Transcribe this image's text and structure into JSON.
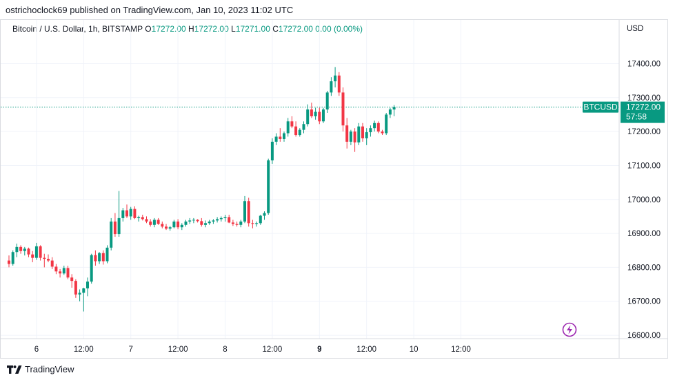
{
  "header": {
    "published_text": "ostrichoclock69 published on TradingView.com, Jan 10, 2023 11:02 UTC"
  },
  "legend": {
    "symbol": "Bitcoin / U.S. Dollar, 1h, BITSTAMP",
    "o_label": "O",
    "o_value": "17272.00",
    "h_label": "H",
    "h_value": "17272.00",
    "l_label": "L",
    "l_value": "17271.00",
    "c_label": "C",
    "c_value": "17272.00",
    "change": "0.00 (0.00%)"
  },
  "footer": {
    "brand": "TradingView",
    "logo_icon": "tradingview-logo-icon"
  },
  "colors": {
    "up": "#089981",
    "down": "#f23645",
    "grid": "#f0f3fa",
    "price_line": "#089981",
    "lightning": "#9c27b0"
  },
  "chart_data": {
    "type": "candlestick",
    "currency_label": "USD",
    "symbol_tag": "BTCUSD",
    "last_price": "17272.00",
    "countdown": "57:58",
    "ylim": [
      16590,
      17480
    ],
    "y_ticks": [
      17400,
      17300,
      17200,
      17100,
      17000,
      16900,
      16800,
      16700,
      16600
    ],
    "y_tick_labels": [
      "17400.00",
      "17300.00",
      "17200.00",
      "17100.00",
      "17000.00",
      "16900.00",
      "16800.00",
      "16700.00",
      "16600.00"
    ],
    "x_ticks": [
      {
        "label": "6",
        "index": 7,
        "bold": false
      },
      {
        "label": "12:00",
        "index": 19,
        "bold": false
      },
      {
        "label": "7",
        "index": 31,
        "bold": false
      },
      {
        "label": "12:00",
        "index": 43,
        "bold": false
      },
      {
        "label": "8",
        "index": 55,
        "bold": false
      },
      {
        "label": "12:00",
        "index": 67,
        "bold": false
      },
      {
        "label": "9",
        "index": 79,
        "bold": true
      },
      {
        "label": "12:00",
        "index": 91,
        "bold": false
      },
      {
        "label": "10",
        "index": 103,
        "bold": false
      },
      {
        "label": "12:00",
        "index": 115,
        "bold": false
      }
    ],
    "candles": [
      [
        16820,
        16835,
        16800,
        16810
      ],
      [
        16810,
        16850,
        16805,
        16845
      ],
      [
        16845,
        16870,
        16830,
        16860
      ],
      [
        16860,
        16865,
        16840,
        16848
      ],
      [
        16848,
        16860,
        16835,
        16855
      ],
      [
        16855,
        16858,
        16830,
        16838
      ],
      [
        16838,
        16848,
        16815,
        16828
      ],
      [
        16828,
        16872,
        16822,
        16862
      ],
      [
        16862,
        16865,
        16820,
        16828
      ],
      [
        16828,
        16840,
        16800,
        16825
      ],
      [
        16825,
        16838,
        16815,
        16820
      ],
      [
        16820,
        16830,
        16795,
        16802
      ],
      [
        16802,
        16810,
        16780,
        16788
      ],
      [
        16788,
        16795,
        16770,
        16782
      ],
      [
        16782,
        16805,
        16778,
        16798
      ],
      [
        16798,
        16805,
        16765,
        16770
      ],
      [
        16770,
        16780,
        16740,
        16760
      ],
      [
        16760,
        16765,
        16710,
        16720
      ],
      [
        16720,
        16735,
        16700,
        16725
      ],
      [
        16725,
        16740,
        16670,
        16738
      ],
      [
        16738,
        16770,
        16715,
        16758
      ],
      [
        16758,
        16840,
        16752,
        16836
      ],
      [
        16836,
        16850,
        16805,
        16818
      ],
      [
        16818,
        16845,
        16810,
        16842
      ],
      [
        16842,
        16850,
        16808,
        16818
      ],
      [
        16818,
        16865,
        16812,
        16858
      ],
      [
        16858,
        16945,
        16850,
        16935
      ],
      [
        16935,
        16960,
        16890,
        16898
      ],
      [
        16898,
        17025,
        16890,
        16945
      ],
      [
        16945,
        16975,
        16935,
        16968
      ],
      [
        16968,
        16985,
        16945,
        16950
      ],
      [
        16950,
        16978,
        16940,
        16972
      ],
      [
        16972,
        16980,
        16942,
        16945
      ],
      [
        16945,
        16952,
        16935,
        16948
      ],
      [
        16948,
        16955,
        16938,
        16942
      ],
      [
        16942,
        16950,
        16930,
        16935
      ],
      [
        16935,
        16942,
        16920,
        16925
      ],
      [
        16925,
        16945,
        16918,
        16940
      ],
      [
        16940,
        16945,
        16925,
        16928
      ],
      [
        16928,
        16935,
        16915,
        16920
      ],
      [
        16920,
        16928,
        16910,
        16914
      ],
      [
        16914,
        16922,
        16908,
        16918
      ],
      [
        16918,
        16940,
        16915,
        16935
      ],
      [
        16935,
        16942,
        16912,
        16918
      ],
      [
        16918,
        16930,
        16910,
        16925
      ],
      [
        16925,
        16940,
        16920,
        16935
      ],
      [
        16935,
        16945,
        16928,
        16938
      ],
      [
        16938,
        16945,
        16930,
        16940
      ],
      [
        16940,
        16942,
        16932,
        16936
      ],
      [
        16936,
        16945,
        16920,
        16925
      ],
      [
        16925,
        16938,
        16918,
        16930
      ],
      [
        16930,
        16940,
        16925,
        16935
      ],
      [
        16935,
        16942,
        16928,
        16938
      ],
      [
        16938,
        16948,
        16932,
        16942
      ],
      [
        16942,
        16950,
        16935,
        16945
      ],
      [
        16945,
        16955,
        16935,
        16948
      ],
      [
        16948,
        16955,
        16930,
        16932
      ],
      [
        16932,
        16940,
        16922,
        16928
      ],
      [
        16928,
        16935,
        16920,
        16925
      ],
      [
        16925,
        16940,
        16918,
        16935
      ],
      [
        16935,
        17010,
        16930,
        16995
      ],
      [
        16995,
        17005,
        16920,
        16930
      ],
      [
        16930,
        16940,
        16915,
        16928
      ],
      [
        16928,
        16935,
        16920,
        16930
      ],
      [
        16930,
        16955,
        16925,
        16952
      ],
      [
        16952,
        16965,
        16940,
        16960
      ],
      [
        16960,
        17120,
        16955,
        17115
      ],
      [
        17115,
        17180,
        17105,
        17170
      ],
      [
        17170,
        17195,
        17160,
        17185
      ],
      [
        17185,
        17210,
        17170,
        17178
      ],
      [
        17178,
        17200,
        17170,
        17195
      ],
      [
        17195,
        17240,
        17185,
        17230
      ],
      [
        17230,
        17245,
        17210,
        17215
      ],
      [
        17215,
        17230,
        17185,
        17190
      ],
      [
        17190,
        17210,
        17185,
        17205
      ],
      [
        17205,
        17230,
        17195,
        17222
      ],
      [
        17222,
        17280,
        17215,
        17265
      ],
      [
        17265,
        17285,
        17240,
        17245
      ],
      [
        17245,
        17270,
        17235,
        17258
      ],
      [
        17258,
        17270,
        17222,
        17230
      ],
      [
        17230,
        17270,
        17225,
        17265
      ],
      [
        17265,
        17320,
        17255,
        17315
      ],
      [
        17315,
        17360,
        17305,
        17348
      ],
      [
        17348,
        17390,
        17330,
        17365
      ],
      [
        17365,
        17375,
        17305,
        17315
      ],
      [
        17315,
        17330,
        17200,
        17218
      ],
      [
        17218,
        17240,
        17150,
        17170
      ],
      [
        17170,
        17205,
        17160,
        17200
      ],
      [
        17200,
        17210,
        17140,
        17168
      ],
      [
        17168,
        17225,
        17160,
        17215
      ],
      [
        17215,
        17225,
        17170,
        17180
      ],
      [
        17180,
        17210,
        17160,
        17198
      ],
      [
        17198,
        17218,
        17185,
        17210
      ],
      [
        17210,
        17232,
        17200,
        17225
      ],
      [
        17225,
        17230,
        17195,
        17200
      ],
      [
        17200,
        17205,
        17190,
        17195
      ],
      [
        17195,
        17255,
        17190,
        17250
      ],
      [
        17250,
        17270,
        17240,
        17265
      ],
      [
        17265,
        17278,
        17245,
        17272
      ]
    ],
    "grid": true
  }
}
